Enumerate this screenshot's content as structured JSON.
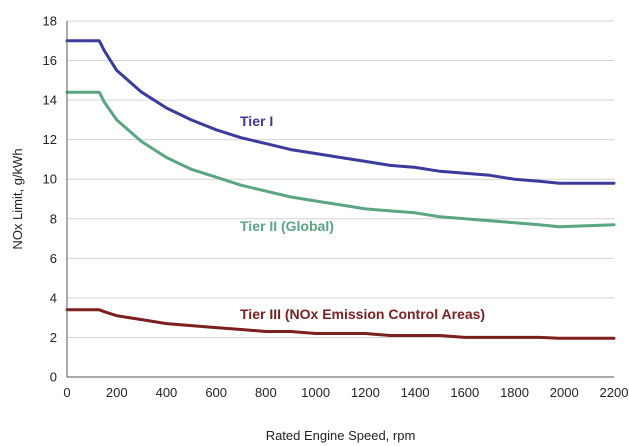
{
  "chart_data": {
    "type": "line",
    "title": "",
    "xlabel": "Rated Engine Speed, rpm",
    "ylabel": "NOx Limit, g/kWh",
    "xlim": [
      0,
      2200
    ],
    "ylim": [
      0,
      18
    ],
    "x_ticks": [
      "0",
      "200",
      "400",
      "600",
      "800",
      "1000",
      "1200",
      "1400",
      "1600",
      "1800",
      "2000",
      "2200"
    ],
    "y_ticks": [
      "0",
      "2",
      "4",
      "6",
      "8",
      "10",
      "12",
      "14",
      "16",
      "18"
    ],
    "grid": "horizontal",
    "legend": "none (series labels placed on chart)",
    "series": [
      {
        "name": "Tier I",
        "color": "#3b3b9c",
        "points": [
          [
            0,
            17.0
          ],
          [
            130,
            17.0
          ],
          [
            150,
            16.5
          ],
          [
            200,
            15.5
          ],
          [
            300,
            14.4
          ],
          [
            400,
            13.6
          ],
          [
            500,
            13.0
          ],
          [
            600,
            12.5
          ],
          [
            700,
            12.1
          ],
          [
            800,
            11.8
          ],
          [
            900,
            11.5
          ],
          [
            1000,
            11.3
          ],
          [
            1100,
            11.1
          ],
          [
            1200,
            10.9
          ],
          [
            1300,
            10.7
          ],
          [
            1400,
            10.6
          ],
          [
            1500,
            10.4
          ],
          [
            1600,
            10.3
          ],
          [
            1700,
            10.2
          ],
          [
            1800,
            10.0
          ],
          [
            1900,
            9.9
          ],
          [
            1980,
            9.8
          ],
          [
            2200,
            9.8
          ]
        ]
      },
      {
        "name": "Tier II (Global)",
        "color": "#5aa582",
        "points": [
          [
            0,
            14.4
          ],
          [
            130,
            14.4
          ],
          [
            150,
            13.9
          ],
          [
            200,
            13.0
          ],
          [
            300,
            11.9
          ],
          [
            400,
            11.1
          ],
          [
            500,
            10.5
          ],
          [
            600,
            10.1
          ],
          [
            700,
            9.7
          ],
          [
            800,
            9.4
          ],
          [
            900,
            9.1
          ],
          [
            1000,
            8.9
          ],
          [
            1100,
            8.7
          ],
          [
            1200,
            8.5
          ],
          [
            1300,
            8.4
          ],
          [
            1400,
            8.3
          ],
          [
            1500,
            8.1
          ],
          [
            1600,
            8.0
          ],
          [
            1700,
            7.9
          ],
          [
            1800,
            7.8
          ],
          [
            1900,
            7.7
          ],
          [
            1980,
            7.6
          ],
          [
            2200,
            7.7
          ]
        ]
      },
      {
        "name": "Tier III (NOx Emission Control Areas)",
        "color": "#7b1f1f",
        "points": [
          [
            0,
            3.4
          ],
          [
            130,
            3.4
          ],
          [
            150,
            3.3
          ],
          [
            200,
            3.1
          ],
          [
            300,
            2.9
          ],
          [
            400,
            2.7
          ],
          [
            500,
            2.6
          ],
          [
            600,
            2.5
          ],
          [
            700,
            2.4
          ],
          [
            800,
            2.3
          ],
          [
            900,
            2.3
          ],
          [
            1000,
            2.2
          ],
          [
            1100,
            2.2
          ],
          [
            1200,
            2.2
          ],
          [
            1300,
            2.1
          ],
          [
            1400,
            2.1
          ],
          [
            1500,
            2.1
          ],
          [
            1600,
            2.0
          ],
          [
            1700,
            2.0
          ],
          [
            1800,
            2.0
          ],
          [
            1900,
            2.0
          ],
          [
            1980,
            1.96
          ],
          [
            2200,
            1.96
          ]
        ]
      }
    ],
    "series_labels": [
      {
        "text": "Tier I",
        "x": 700,
        "y": 12.8
      },
      {
        "text": "Tier II (Global)",
        "x": 700,
        "y": 7.6
      },
      {
        "text": "Tier III (NOx Emission Control Areas)",
        "x": 700,
        "y": 3.2
      }
    ]
  }
}
